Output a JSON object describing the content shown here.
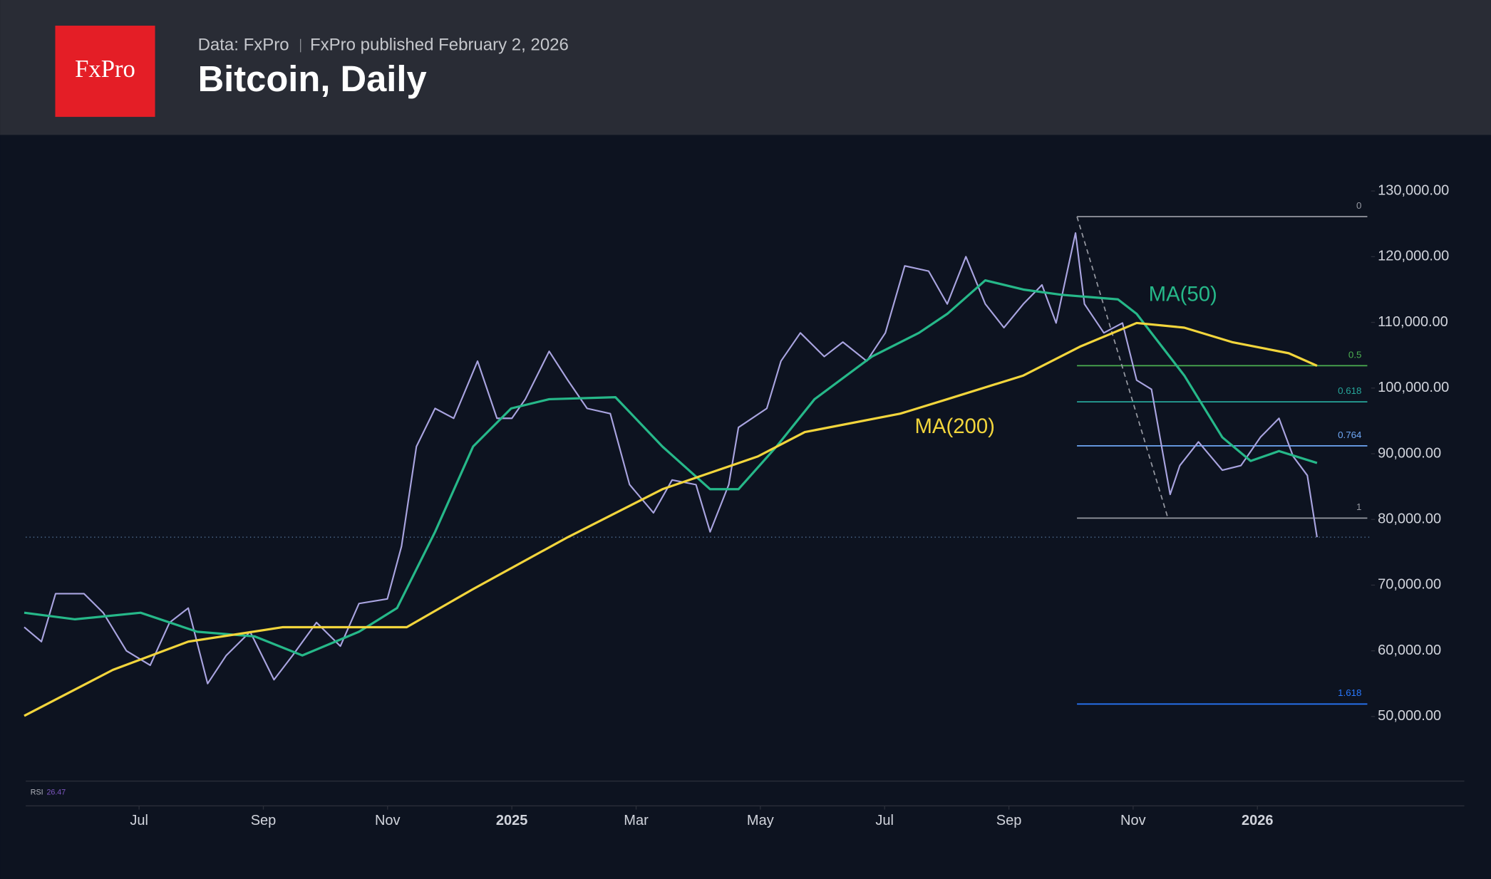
{
  "header": {
    "logo": "FxPro",
    "source": "Data: FxPro",
    "published": "FxPro published February 2, 2026"
  },
  "chart_data": {
    "type": "line",
    "title": "Bitcoin, Daily",
    "xlim": [
      2024.348,
      2026.15
    ],
    "xticks": [
      {
        "value": 2024.5,
        "label": "Jul"
      },
      {
        "value": 2024.6667,
        "label": "Sep"
      },
      {
        "value": 2024.8333,
        "label": "Nov"
      },
      2025,
      {
        "value": 2025.1667,
        "label": "Mar"
      },
      {
        "value": 2025.3333,
        "label": "May"
      },
      {
        "value": 2025.5,
        "label": "Jul"
      },
      {
        "value": 2025.6667,
        "label": "Sep"
      },
      {
        "value": 2025.8333,
        "label": "Nov"
      },
      2026
    ],
    "ylim": [
      40450,
      135930
    ],
    "yticks": [
      {
        "value": 50000,
        "label": "50,000.00"
      },
      {
        "value": 60000,
        "label": "60,000.00"
      },
      {
        "value": 70000,
        "label": "70,000.00"
      },
      {
        "value": 80000,
        "label": "80,000.00"
      },
      {
        "value": 90000,
        "label": "90,000.00"
      },
      {
        "value": 100000,
        "label": "100,000.00"
      },
      {
        "value": 110000,
        "label": "110,000.00"
      },
      {
        "value": 120000,
        "label": "120,000.00"
      },
      {
        "value": 130000,
        "label": "130,000.00"
      }
    ],
    "series": [
      {
        "color": "#a9a4e0",
        "x": [
          2024.346,
          2024.369,
          2024.388,
          2024.426,
          2024.452,
          2024.483,
          2024.515,
          2024.541,
          2024.566,
          2024.592,
          2024.617,
          2024.649,
          2024.681,
          2024.706,
          2024.738,
          2024.77,
          2024.795,
          2024.833,
          2024.852,
          2024.872,
          2024.897,
          2024.922,
          2024.954,
          2024.98,
          2025.0,
          2025.018,
          2025.05,
          2025.075,
          2025.101,
          2025.132,
          2025.158,
          2025.19,
          2025.215,
          2025.247,
          2025.266,
          2025.291,
          2025.304,
          2025.342,
          2025.361,
          2025.387,
          2025.419,
          2025.444,
          2025.476,
          2025.501,
          2025.527,
          2025.559,
          2025.584,
          2025.609,
          2025.635,
          2025.66,
          2025.686,
          2025.711,
          2025.73,
          2025.756,
          2025.768,
          2025.794,
          2025.819,
          2025.838,
          2025.858,
          2025.883,
          2025.896,
          2025.921,
          2025.953,
          2025.978,
          2026.004,
          2026.029,
          2026.048,
          2026.067,
          2026.08
        ],
        "values": [
          63600,
          61400,
          68700,
          68700,
          65800,
          60000,
          57800,
          64300,
          66500,
          55000,
          59300,
          62900,
          55600,
          59300,
          64300,
          60700,
          67200,
          67900,
          75900,
          91100,
          96900,
          95400,
          104100,
          95400,
          95400,
          98300,
          105600,
          101200,
          96900,
          96100,
          85300,
          81000,
          86000,
          85300,
          78100,
          85300,
          94000,
          96900,
          104100,
          108400,
          104800,
          107000,
          104100,
          108400,
          118600,
          117800,
          112800,
          120000,
          112800,
          109200,
          112800,
          115700,
          109900,
          123600,
          112800,
          108400,
          109900,
          101200,
          99800,
          83800,
          88200,
          91800,
          87500,
          88200,
          92500,
          95400,
          89600,
          86700,
          77300
        ]
      },
      {
        "name": "MA(50)",
        "color": "#26b889",
        "x": [
          2024.346,
          2024.414,
          2024.502,
          2024.578,
          2024.655,
          2024.719,
          2024.795,
          2024.846,
          2024.897,
          2024.948,
          2024.999,
          2025.05,
          2025.139,
          2025.202,
          2025.266,
          2025.304,
          2025.355,
          2025.406,
          2025.483,
          2025.546,
          2025.584,
          2025.635,
          2025.686,
          2025.737,
          2025.813,
          2025.838,
          2025.902,
          2025.953,
          2025.991,
          2026.029,
          2026.08
        ],
        "values": [
          65800,
          64800,
          65800,
          62900,
          62200,
          59300,
          62900,
          66500,
          78100,
          91100,
          96900,
          98300,
          98600,
          91100,
          84600,
          84600,
          91100,
          98300,
          104800,
          108400,
          111300,
          116400,
          115000,
          114200,
          113500,
          111300,
          101900,
          92500,
          88900,
          90400,
          88600
        ]
      },
      {
        "name": "MA(200)",
        "color": "#f2d53c",
        "x": [
          2024.346,
          2024.465,
          2024.566,
          2024.693,
          2024.859,
          2024.948,
          2025.075,
          2025.202,
          2025.33,
          2025.393,
          2025.521,
          2025.584,
          2025.686,
          2025.762,
          2025.838,
          2025.902,
          2025.966,
          2026.042,
          2026.08
        ],
        "values": [
          50100,
          57100,
          61400,
          63600,
          63600,
          69400,
          77300,
          84600,
          89600,
          93300,
          96100,
          98300,
          101900,
          106300,
          109900,
          109200,
          107000,
          105300,
          103400
        ]
      }
    ],
    "fibonacci": {
      "x": [
        2025.758,
        2025.88
      ],
      "levels": [
        {
          "ratio": 0,
          "price": 126100,
          "color": "#9598a1"
        },
        {
          "ratio": 0.5,
          "price": 103400,
          "color": "#4caf50"
        },
        {
          "ratio": 0.618,
          "price": 97900,
          "color": "#26a69a"
        },
        {
          "ratio": 0.764,
          "price": 91200,
          "color": "#6fa8f5"
        },
        {
          "ratio": 1,
          "price": 80200,
          "color": "#9598a1"
        },
        {
          "ratio": 1.618,
          "price": 51900,
          "color": "#2979ff"
        }
      ]
    },
    "rsi": {
      "label": "RSI",
      "value": 26.47
    }
  }
}
